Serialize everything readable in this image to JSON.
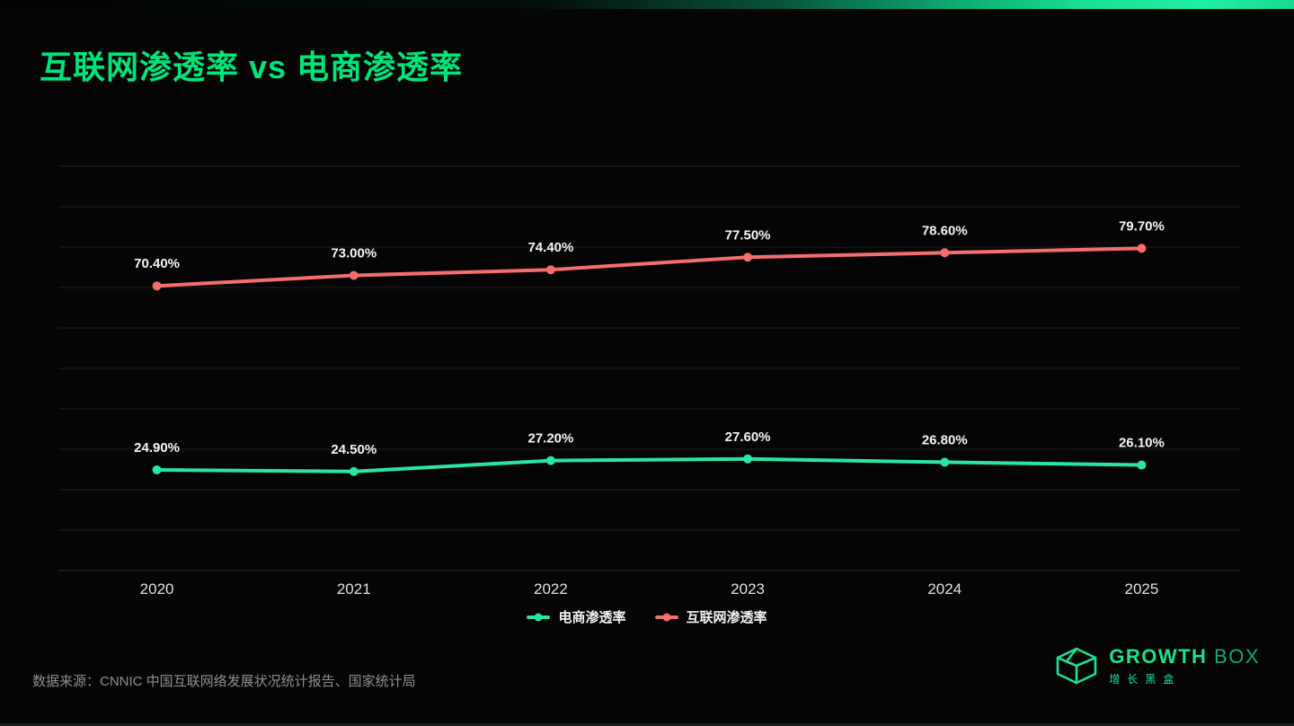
{
  "header": {
    "title": "互联网渗透率 vs 电商渗透率"
  },
  "chart_data": {
    "type": "line",
    "title": "互联网渗透率 vs 电商渗透率",
    "categories": [
      "2020",
      "2021",
      "2022",
      "2023",
      "2024",
      "2025"
    ],
    "series": [
      {
        "name": "电商渗透率",
        "color": "#2be3a4",
        "values": [
          24.9,
          24.5,
          27.2,
          27.6,
          26.8,
          26.1
        ],
        "point_labels": [
          "24.90%",
          "24.50%",
          "27.20%",
          "27.60%",
          "26.80%",
          "26.10%"
        ]
      },
      {
        "name": "互联网渗透率",
        "color": "#f66d6d",
        "values": [
          70.4,
          73.0,
          74.4,
          77.5,
          78.6,
          79.7
        ],
        "point_labels": [
          "70.40%",
          "73.00%",
          "74.40%",
          "77.50%",
          "78.60%",
          "79.70%"
        ]
      }
    ],
    "xlabel": "",
    "ylabel": "",
    "ylim": [
      0,
      100
    ],
    "y_grid_step": 10,
    "grid": true,
    "legend_position": "bottom"
  },
  "footer": {
    "source": "数据来源：CNNIC 中国互联网络发展状况统计报告、国家统计局"
  },
  "logo": {
    "brand": "GROWTH",
    "brand2": "BOX",
    "subtitle": "增长黑盒",
    "icon": "cube-box-icon",
    "color": "#1fe08e"
  },
  "colors": {
    "background": "#050505",
    "title_green": "#00e57a",
    "series_green": "#2be3a4",
    "series_red": "#f66d6d",
    "grid": "#1f1f1f",
    "data_label": "#f5f5f5",
    "tick_label": "#e2e2e2",
    "source_text": "#8d928f",
    "logo_green": "#1fe08e"
  }
}
